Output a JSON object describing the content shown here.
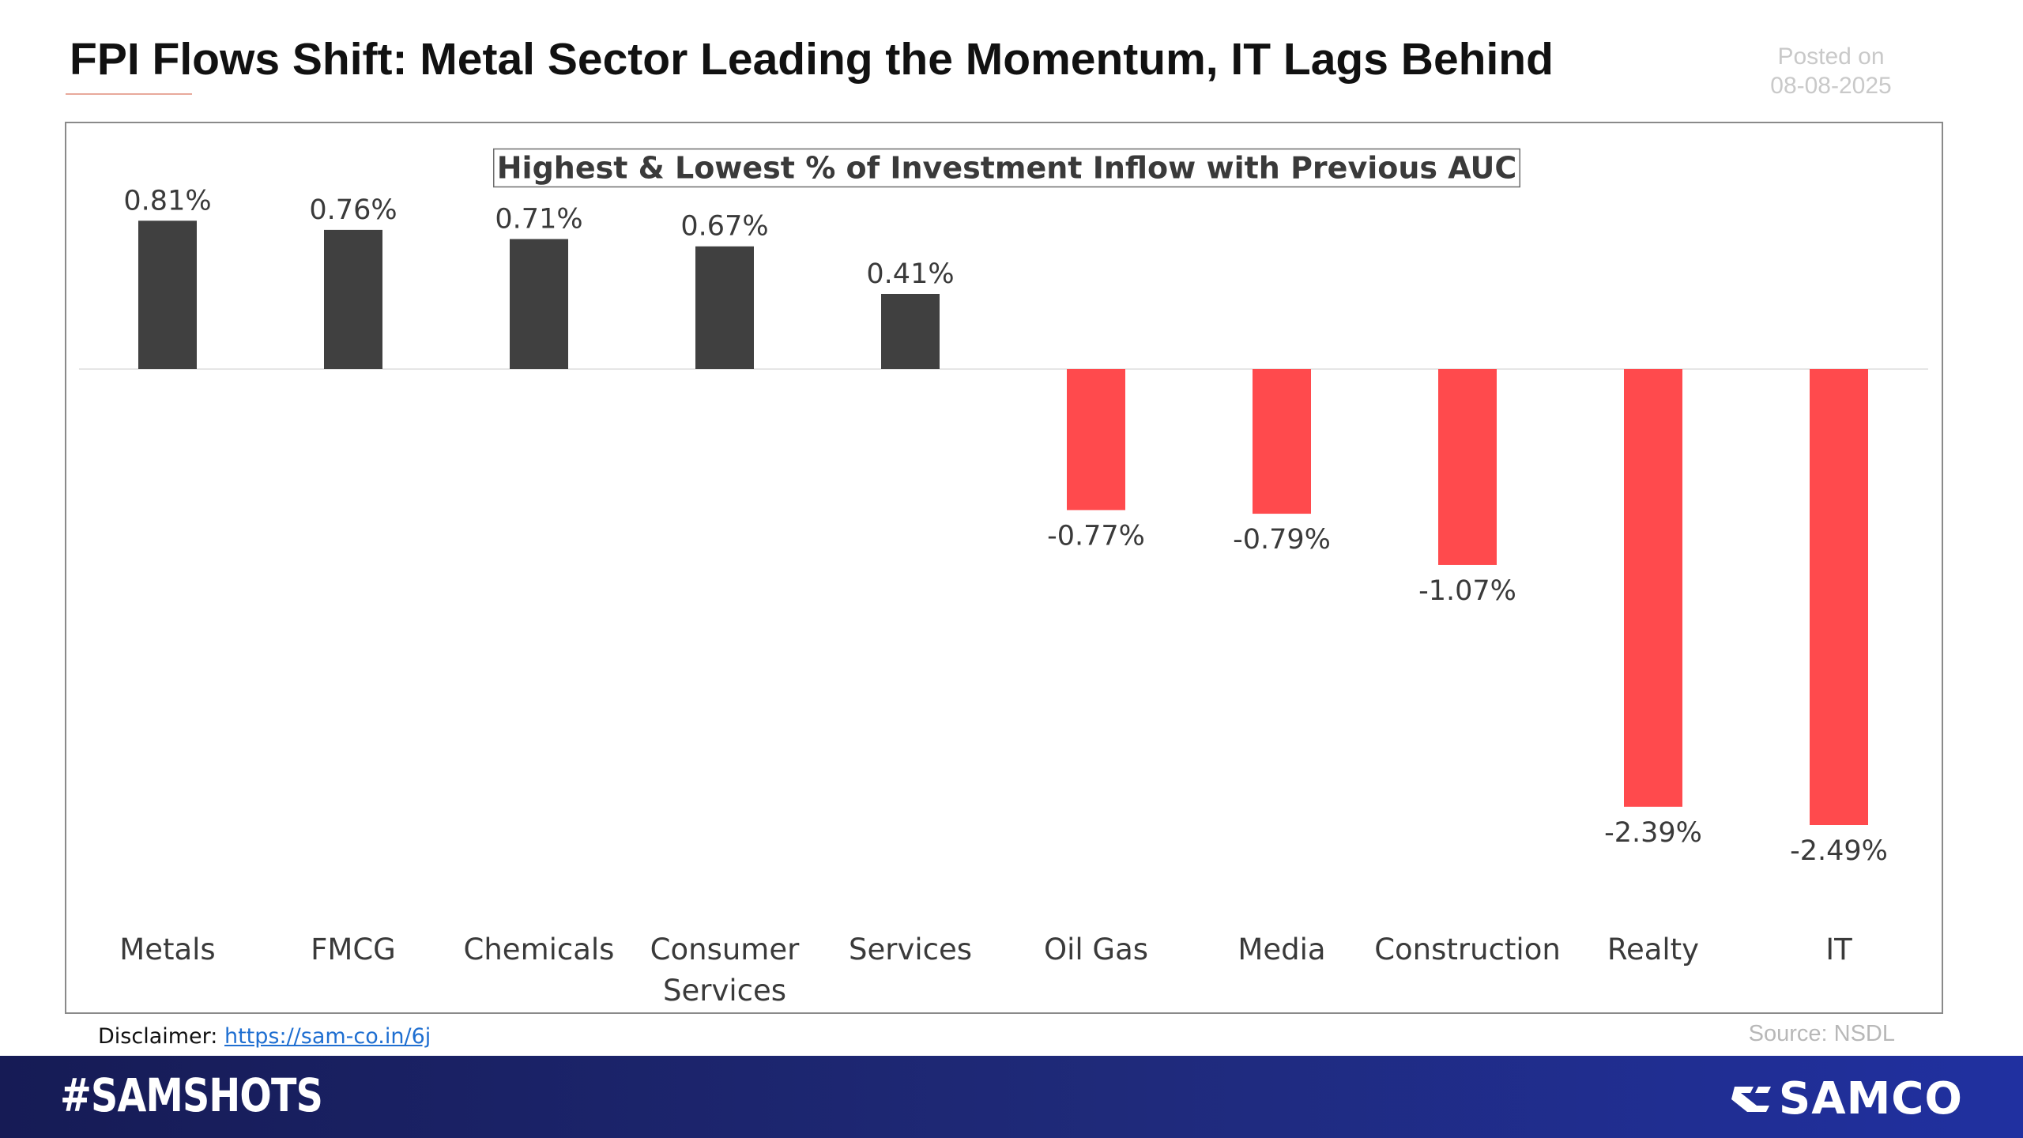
{
  "header": {
    "title": "FPI Flows Shift: Metal Sector Leading the Momentum, IT Lags Behind",
    "posted_label": "Posted on",
    "posted_date": "08-08-2025"
  },
  "chart_data": {
    "type": "bar",
    "title": "Highest & Lowest % of Investment Inflow with Previous AUC",
    "categories": [
      "Metals",
      "FMCG",
      "Chemicals",
      "Consumer Services",
      "Services",
      "Oil Gas",
      "Media",
      "Construction",
      "Realty",
      "IT"
    ],
    "category_lines": [
      [
        "Metals"
      ],
      [
        "FMCG"
      ],
      [
        "Chemicals"
      ],
      [
        "Consumer",
        "Services"
      ],
      [
        "Services"
      ],
      [
        "Oil Gas"
      ],
      [
        "Media"
      ],
      [
        "Construction"
      ],
      [
        "Realty"
      ],
      [
        "IT"
      ]
    ],
    "values": [
      0.81,
      0.76,
      0.71,
      0.67,
      0.41,
      -0.77,
      -0.79,
      -1.07,
      -2.39,
      -2.49
    ],
    "data_labels": [
      "0.81%",
      "0.76%",
      "0.71%",
      "0.67%",
      "0.41%",
      "-0.77%",
      "-0.79%",
      "-1.07%",
      "-2.39%",
      "-2.49%"
    ],
    "unit": "%",
    "ylim": [
      -2.49,
      0.81
    ],
    "xlabel": "",
    "ylabel": "",
    "grid": false,
    "legend": "none",
    "colors": {
      "positive": "#404040",
      "negative": "#ff4a4d"
    }
  },
  "footer": {
    "disclaimer_label": "Disclaimer:",
    "disclaimer_link": "https://sam-co.in/6j",
    "source": "Source: NSDL",
    "hashtag": "#SAMSHOTS",
    "brand": "SAMCO",
    "brand_icon": "samco-logo-icon",
    "bar_color": "#1c2470"
  }
}
